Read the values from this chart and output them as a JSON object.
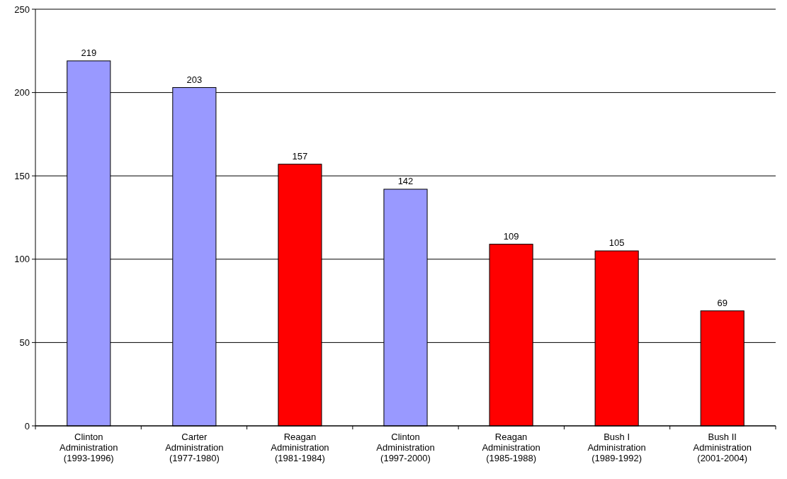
{
  "chart_data": {
    "type": "bar",
    "categories": [
      "Clinton Administration (1993-1996)",
      "Carter Administration (1977-1980)",
      "Reagan Administration (1981-1984)",
      "Clinton Administration (1997-2000)",
      "Reagan Administration (1985-1988)",
      "Bush I Administration (1989-1992)",
      "Bush II Administration (2001-2004)"
    ],
    "values": [
      219,
      203,
      157,
      142,
      109,
      105,
      69
    ],
    "colors": [
      "#9999ff",
      "#9999ff",
      "#ff0000",
      "#9999ff",
      "#ff0000",
      "#ff0000",
      "#ff0000"
    ],
    "ylim": [
      0,
      250
    ],
    "yticks": [
      0,
      50,
      100,
      150,
      200,
      250
    ],
    "grid": "y",
    "data_labels": true
  }
}
